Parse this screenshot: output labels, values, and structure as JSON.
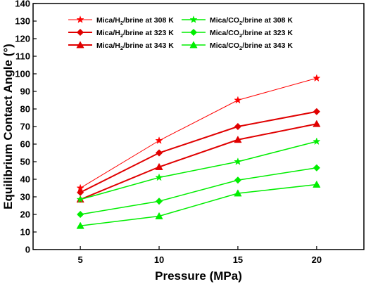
{
  "chart_data": {
    "type": "line",
    "xlabel": "Pressure (MPa)",
    "ylabel": "Equilibrium Contact Angle (°)",
    "x": [
      5,
      10,
      15,
      20
    ],
    "xlim": [
      2,
      23
    ],
    "ylim": [
      0,
      140
    ],
    "xticks": [
      "5",
      "10",
      "15",
      "20"
    ],
    "yticks": [
      "0",
      "10",
      "20",
      "30",
      "40",
      "50",
      "60",
      "70",
      "80",
      "90",
      "100",
      "110",
      "120",
      "130",
      "140"
    ],
    "grid": false,
    "legend_position": "top-left",
    "series": [
      {
        "name": "Mica/H2/brine at 308 K",
        "label_main": "Mica/H",
        "label_sub": "2",
        "label_rest": "/brine at 308 K",
        "values": [
          35,
          62,
          85,
          97.5
        ],
        "color": "#ff0000",
        "marker": "star",
        "stroke_width": 1
      },
      {
        "name": "Mica/H2/brine at 323 K",
        "label_main": "Mica/H",
        "label_sub": "2",
        "label_rest": "/brine at 323 K",
        "values": [
          32.5,
          55,
          70,
          78.5
        ],
        "color": "#e00000",
        "marker": "diamond",
        "stroke_width": 2
      },
      {
        "name": "Mica/H2/brine at 343 K",
        "label_main": "Mica/H",
        "label_sub": "2",
        "label_rest": "/brine at 343 K",
        "values": [
          28.5,
          47,
          62.5,
          71.5
        ],
        "color": "#e00000",
        "marker": "triangle",
        "stroke_width": 2
      },
      {
        "name": "Mica/CO2/brine at 308 K",
        "label_main": "Mica/CO",
        "label_sub": "2",
        "label_rest": "/brine at 308 K",
        "values": [
          28.5,
          41,
          50,
          61.5
        ],
        "color": "#00ee00",
        "marker": "star",
        "stroke_width": 1.5
      },
      {
        "name": "Mica/CO2/brine at 323 K",
        "label_main": "Mica/CO",
        "label_sub": "2",
        "label_rest": "/brine at 323 K",
        "values": [
          20,
          27.5,
          39.5,
          46.5
        ],
        "color": "#00ee00",
        "marker": "diamond",
        "stroke_width": 1.5
      },
      {
        "name": "Mica/CO2/brine at 343 K",
        "label_main": "Mica/CO",
        "label_sub": "2",
        "label_rest": "/brine at 343 K",
        "values": [
          13.5,
          19,
          32,
          37
        ],
        "color": "#00ee00",
        "marker": "triangle",
        "stroke_width": 1.5
      }
    ]
  }
}
